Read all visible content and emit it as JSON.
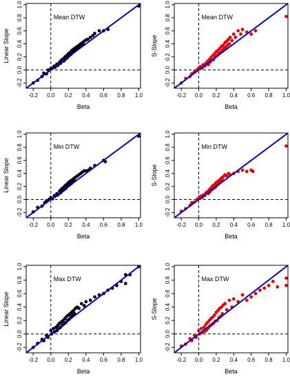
{
  "figure": {
    "colors": {
      "line": "#0000cc",
      "linear_points": "#000000",
      "s_points": "#ee0000",
      "refline": "#000000"
    }
  },
  "chart_data": [
    {
      "type": "scatter",
      "label": "Mean DTW",
      "xlabel": "Beta",
      "ylabel": "Linear Slope",
      "x_ticks": [
        -0.2,
        0.0,
        0.2,
        0.4,
        0.6,
        0.8,
        1.0
      ],
      "y_ticks": [
        -0.2,
        0.0,
        0.2,
        0.4,
        0.6,
        0.8,
        1.0
      ],
      "xlim": [
        -0.28,
        1.02
      ],
      "ylim": [
        -0.28,
        1.02
      ],
      "point_color": "#000000",
      "reference_lines": {
        "x": 0,
        "y": 0,
        "identity": true
      },
      "points": [
        [
          -0.2,
          -0.2
        ],
        [
          -0.15,
          -0.16
        ],
        [
          -0.1,
          -0.1
        ],
        [
          -0.08,
          -0.05
        ],
        [
          -0.05,
          -0.06
        ],
        [
          -0.03,
          0.0
        ],
        [
          0.0,
          0.02
        ],
        [
          0.02,
          0.03
        ],
        [
          0.04,
          0.06
        ],
        [
          0.05,
          0.04
        ],
        [
          0.07,
          0.09
        ],
        [
          0.08,
          0.07
        ],
        [
          0.1,
          0.12
        ],
        [
          0.11,
          0.1
        ],
        [
          0.12,
          0.15
        ],
        [
          0.13,
          0.13
        ],
        [
          0.14,
          0.17
        ],
        [
          0.15,
          0.14
        ],
        [
          0.16,
          0.2
        ],
        [
          0.17,
          0.17
        ],
        [
          0.18,
          0.22
        ],
        [
          0.19,
          0.19
        ],
        [
          0.2,
          0.25
        ],
        [
          0.21,
          0.22
        ],
        [
          0.22,
          0.27
        ],
        [
          0.23,
          0.24
        ],
        [
          0.24,
          0.3
        ],
        [
          0.25,
          0.27
        ],
        [
          0.26,
          0.32
        ],
        [
          0.27,
          0.29
        ],
        [
          0.28,
          0.34
        ],
        [
          0.29,
          0.31
        ],
        [
          0.3,
          0.36
        ],
        [
          0.31,
          0.33
        ],
        [
          0.32,
          0.38
        ],
        [
          0.33,
          0.35
        ],
        [
          0.34,
          0.4
        ],
        [
          0.35,
          0.37
        ],
        [
          0.36,
          0.42
        ],
        [
          0.37,
          0.39
        ],
        [
          0.38,
          0.44
        ],
        [
          0.4,
          0.46
        ],
        [
          0.42,
          0.47
        ],
        [
          0.45,
          0.5
        ],
        [
          0.48,
          0.53
        ],
        [
          0.5,
          0.56
        ],
        [
          0.55,
          0.6
        ],
        [
          0.6,
          0.6
        ],
        [
          0.65,
          0.62
        ],
        [
          1.0,
          0.98
        ]
      ]
    },
    {
      "type": "scatter",
      "label": "Mean DTW",
      "xlabel": "Beta",
      "ylabel": "S-Slope",
      "x_ticks": [
        -0.2,
        0.0,
        0.2,
        0.4,
        0.6,
        0.8,
        1.0
      ],
      "y_ticks": [
        -0.2,
        0.0,
        0.2,
        0.4,
        0.6,
        0.8,
        1.0
      ],
      "xlim": [
        -0.28,
        1.02
      ],
      "ylim": [
        -0.28,
        1.02
      ],
      "point_color": "#ee0000",
      "reference_lines": {
        "x": 0,
        "y": 0,
        "identity": true
      },
      "points": [
        [
          -0.2,
          -0.2
        ],
        [
          -0.15,
          -0.13
        ],
        [
          -0.1,
          -0.1
        ],
        [
          -0.08,
          -0.06
        ],
        [
          -0.05,
          -0.03
        ],
        [
          -0.02,
          0.0
        ],
        [
          0.0,
          0.03
        ],
        [
          0.02,
          0.05
        ],
        [
          0.04,
          0.03
        ],
        [
          0.05,
          0.08
        ],
        [
          0.07,
          0.06
        ],
        [
          0.08,
          0.1
        ],
        [
          0.1,
          0.13
        ],
        [
          0.11,
          0.08
        ],
        [
          0.12,
          0.16
        ],
        [
          0.13,
          0.12
        ],
        [
          0.14,
          0.19
        ],
        [
          0.15,
          0.15
        ],
        [
          0.16,
          0.22
        ],
        [
          0.17,
          0.16
        ],
        [
          0.18,
          0.25
        ],
        [
          0.19,
          0.2
        ],
        [
          0.2,
          0.28
        ],
        [
          0.21,
          0.22
        ],
        [
          0.22,
          0.3
        ],
        [
          0.23,
          0.25
        ],
        [
          0.24,
          0.33
        ],
        [
          0.25,
          0.27
        ],
        [
          0.26,
          0.36
        ],
        [
          0.27,
          0.3
        ],
        [
          0.28,
          0.38
        ],
        [
          0.29,
          0.33
        ],
        [
          0.3,
          0.42
        ],
        [
          0.31,
          0.35
        ],
        [
          0.32,
          0.44
        ],
        [
          0.33,
          0.38
        ],
        [
          0.34,
          0.47
        ],
        [
          0.35,
          0.4
        ],
        [
          0.36,
          0.5
        ],
        [
          0.38,
          0.45
        ],
        [
          0.4,
          0.55
        ],
        [
          0.42,
          0.5
        ],
        [
          0.45,
          0.6
        ],
        [
          0.48,
          0.55
        ],
        [
          0.5,
          0.62
        ],
        [
          0.55,
          0.58
        ],
        [
          0.6,
          0.55
        ],
        [
          0.65,
          0.6
        ],
        [
          1.0,
          0.82
        ]
      ]
    },
    {
      "type": "scatter",
      "label": "Min DTW",
      "xlabel": "Beta",
      "ylabel": "Linear Slope",
      "x_ticks": [
        -0.2,
        0.0,
        0.2,
        0.4,
        0.6,
        0.8,
        1.0
      ],
      "y_ticks": [
        -0.2,
        0.0,
        0.2,
        0.4,
        0.6,
        0.8,
        1.0
      ],
      "xlim": [
        -0.28,
        1.02
      ],
      "ylim": [
        -0.28,
        1.02
      ],
      "point_color": "#000000",
      "reference_lines": {
        "x": 0,
        "y": 0,
        "identity": true
      },
      "points": [
        [
          -0.2,
          -0.19
        ],
        [
          -0.15,
          -0.12
        ],
        [
          -0.1,
          -0.1
        ],
        [
          -0.07,
          -0.05
        ],
        [
          -0.05,
          -0.03
        ],
        [
          -0.02,
          0.0
        ],
        [
          0.0,
          0.03
        ],
        [
          0.02,
          0.01
        ],
        [
          0.04,
          0.06
        ],
        [
          0.05,
          0.05
        ],
        [
          0.07,
          0.09
        ],
        [
          0.08,
          0.07
        ],
        [
          0.1,
          0.13
        ],
        [
          0.11,
          0.1
        ],
        [
          0.12,
          0.16
        ],
        [
          0.13,
          0.13
        ],
        [
          0.14,
          0.18
        ],
        [
          0.15,
          0.15
        ],
        [
          0.16,
          0.21
        ],
        [
          0.17,
          0.17
        ],
        [
          0.18,
          0.23
        ],
        [
          0.19,
          0.2
        ],
        [
          0.2,
          0.26
        ],
        [
          0.21,
          0.22
        ],
        [
          0.22,
          0.28
        ],
        [
          0.23,
          0.24
        ],
        [
          0.24,
          0.3
        ],
        [
          0.25,
          0.27
        ],
        [
          0.26,
          0.32
        ],
        [
          0.27,
          0.29
        ],
        [
          0.28,
          0.34
        ],
        [
          0.3,
          0.36
        ],
        [
          0.32,
          0.38
        ],
        [
          0.34,
          0.4
        ],
        [
          0.36,
          0.42
        ],
        [
          0.38,
          0.44
        ],
        [
          0.4,
          0.44
        ],
        [
          0.43,
          0.45
        ],
        [
          0.45,
          0.48
        ],
        [
          0.5,
          0.52
        ],
        [
          0.6,
          0.6
        ],
        [
          0.62,
          0.58
        ],
        [
          1.0,
          0.97
        ]
      ]
    },
    {
      "type": "scatter",
      "label": "Min DTW",
      "xlabel": "Beta",
      "ylabel": "S-Slope",
      "x_ticks": [
        -0.2,
        0.0,
        0.2,
        0.4,
        0.6,
        0.8,
        1.0
      ],
      "y_ticks": [
        -0.2,
        0.0,
        0.2,
        0.4,
        0.6,
        0.8,
        1.0
      ],
      "xlim": [
        -0.28,
        1.02
      ],
      "ylim": [
        -0.28,
        1.02
      ],
      "point_color": "#ee0000",
      "reference_lines": {
        "x": 0,
        "y": 0,
        "identity": true
      },
      "points": [
        [
          -0.2,
          -0.18
        ],
        [
          -0.15,
          -0.14
        ],
        [
          -0.1,
          -0.09
        ],
        [
          -0.08,
          -0.05
        ],
        [
          -0.05,
          -0.04
        ],
        [
          -0.02,
          0.0
        ],
        [
          0.0,
          0.02
        ],
        [
          0.02,
          0.05
        ],
        [
          0.04,
          0.03
        ],
        [
          0.05,
          0.07
        ],
        [
          0.07,
          0.06
        ],
        [
          0.08,
          0.1
        ],
        [
          0.1,
          0.12
        ],
        [
          0.11,
          0.09
        ],
        [
          0.12,
          0.15
        ],
        [
          0.13,
          0.12
        ],
        [
          0.14,
          0.18
        ],
        [
          0.15,
          0.15
        ],
        [
          0.16,
          0.21
        ],
        [
          0.17,
          0.17
        ],
        [
          0.18,
          0.23
        ],
        [
          0.19,
          0.19
        ],
        [
          0.2,
          0.26
        ],
        [
          0.21,
          0.22
        ],
        [
          0.22,
          0.28
        ],
        [
          0.23,
          0.25
        ],
        [
          0.24,
          0.3
        ],
        [
          0.25,
          0.27
        ],
        [
          0.26,
          0.33
        ],
        [
          0.27,
          0.3
        ],
        [
          0.28,
          0.35
        ],
        [
          0.3,
          0.38
        ],
        [
          0.32,
          0.36
        ],
        [
          0.34,
          0.4
        ],
        [
          0.36,
          0.38
        ],
        [
          0.4,
          0.4
        ],
        [
          0.45,
          0.43
        ],
        [
          0.5,
          0.45
        ],
        [
          0.55,
          0.43
        ],
        [
          0.6,
          0.45
        ],
        [
          0.62,
          0.43
        ],
        [
          1.0,
          0.82
        ]
      ]
    },
    {
      "type": "scatter",
      "label": "Max DTW",
      "xlabel": "Beta",
      "ylabel": "Linear Slope",
      "x_ticks": [
        -0.2,
        0.0,
        0.2,
        0.4,
        0.6,
        0.8,
        1.0
      ],
      "y_ticks": [
        -0.2,
        0.0,
        0.2,
        0.4,
        0.6,
        0.8,
        1.0
      ],
      "xlim": [
        -0.28,
        1.02
      ],
      "ylim": [
        -0.28,
        1.02
      ],
      "point_color": "#000000",
      "reference_lines": {
        "x": 0,
        "y": 0,
        "identity": true
      },
      "points": [
        [
          -0.2,
          -0.2
        ],
        [
          -0.15,
          -0.14
        ],
        [
          -0.1,
          -0.08
        ],
        [
          -0.08,
          -0.1
        ],
        [
          -0.05,
          -0.02
        ],
        [
          -0.03,
          -0.05
        ],
        [
          0.0,
          0.05
        ],
        [
          0.01,
          0.0
        ],
        [
          0.03,
          0.08
        ],
        [
          0.04,
          0.03
        ],
        [
          0.06,
          0.1
        ],
        [
          0.07,
          0.05
        ],
        [
          0.08,
          0.13
        ],
        [
          0.09,
          0.08
        ],
        [
          0.1,
          0.16
        ],
        [
          0.11,
          0.1
        ],
        [
          0.12,
          0.18
        ],
        [
          0.13,
          0.13
        ],
        [
          0.14,
          0.2
        ],
        [
          0.15,
          0.15
        ],
        [
          0.16,
          0.23
        ],
        [
          0.17,
          0.17
        ],
        [
          0.18,
          0.26
        ],
        [
          0.19,
          0.2
        ],
        [
          0.2,
          0.28
        ],
        [
          0.21,
          0.22
        ],
        [
          0.22,
          0.3
        ],
        [
          0.23,
          0.25
        ],
        [
          0.24,
          0.33
        ],
        [
          0.25,
          0.28
        ],
        [
          0.26,
          0.35
        ],
        [
          0.27,
          0.3
        ],
        [
          0.28,
          0.38
        ],
        [
          0.3,
          0.4
        ],
        [
          0.32,
          0.38
        ],
        [
          0.35,
          0.45
        ],
        [
          0.38,
          0.42
        ],
        [
          0.4,
          0.48
        ],
        [
          0.45,
          0.5
        ],
        [
          0.5,
          0.55
        ],
        [
          0.55,
          0.58
        ],
        [
          0.6,
          0.6
        ],
        [
          0.65,
          0.65
        ],
        [
          0.7,
          0.68
        ],
        [
          0.75,
          0.72
        ],
        [
          0.8,
          0.78
        ],
        [
          0.85,
          0.75
        ],
        [
          0.85,
          0.88
        ],
        [
          0.9,
          0.88
        ],
        [
          1.0,
          1.0
        ]
      ]
    },
    {
      "type": "scatter",
      "label": "Max DTW",
      "xlabel": "Beta",
      "ylabel": "S-Slope",
      "x_ticks": [
        -0.2,
        0.0,
        0.2,
        0.4,
        0.6,
        0.8,
        1.0
      ],
      "y_ticks": [
        -0.2,
        0.0,
        0.2,
        0.4,
        0.6,
        0.8,
        1.0
      ],
      "xlim": [
        -0.28,
        1.02
      ],
      "ylim": [
        -0.28,
        1.02
      ],
      "point_color": "#ee0000",
      "reference_lines": {
        "x": 0,
        "y": 0,
        "identity": true
      },
      "points": [
        [
          -0.2,
          -0.18
        ],
        [
          -0.15,
          -0.15
        ],
        [
          -0.1,
          -0.07
        ],
        [
          -0.08,
          -0.1
        ],
        [
          -0.05,
          -0.02
        ],
        [
          -0.03,
          -0.05
        ],
        [
          0.0,
          0.05
        ],
        [
          0.01,
          0.0
        ],
        [
          0.03,
          0.08
        ],
        [
          0.04,
          0.02
        ],
        [
          0.06,
          0.1
        ],
        [
          0.07,
          0.04
        ],
        [
          0.08,
          0.14
        ],
        [
          0.09,
          0.06
        ],
        [
          0.1,
          0.17
        ],
        [
          0.11,
          0.09
        ],
        [
          0.12,
          0.2
        ],
        [
          0.13,
          0.12
        ],
        [
          0.14,
          0.23
        ],
        [
          0.15,
          0.14
        ],
        [
          0.16,
          0.25
        ],
        [
          0.17,
          0.16
        ],
        [
          0.18,
          0.28
        ],
        [
          0.19,
          0.19
        ],
        [
          0.2,
          0.32
        ],
        [
          0.21,
          0.2
        ],
        [
          0.22,
          0.35
        ],
        [
          0.23,
          0.24
        ],
        [
          0.24,
          0.38
        ],
        [
          0.25,
          0.26
        ],
        [
          0.26,
          0.4
        ],
        [
          0.27,
          0.3
        ],
        [
          0.28,
          0.43
        ],
        [
          0.3,
          0.45
        ],
        [
          0.32,
          0.36
        ],
        [
          0.35,
          0.5
        ],
        [
          0.38,
          0.4
        ],
        [
          0.4,
          0.52
        ],
        [
          0.45,
          0.48
        ],
        [
          0.5,
          0.58
        ],
        [
          0.55,
          0.5
        ],
        [
          0.6,
          0.55
        ],
        [
          0.65,
          0.6
        ],
        [
          0.7,
          0.65
        ],
        [
          0.75,
          0.68
        ],
        [
          0.8,
          0.72
        ],
        [
          0.85,
          0.78
        ],
        [
          0.9,
          0.7
        ],
        [
          1.0,
          0.83
        ],
        [
          1.0,
          0.72
        ]
      ]
    }
  ]
}
